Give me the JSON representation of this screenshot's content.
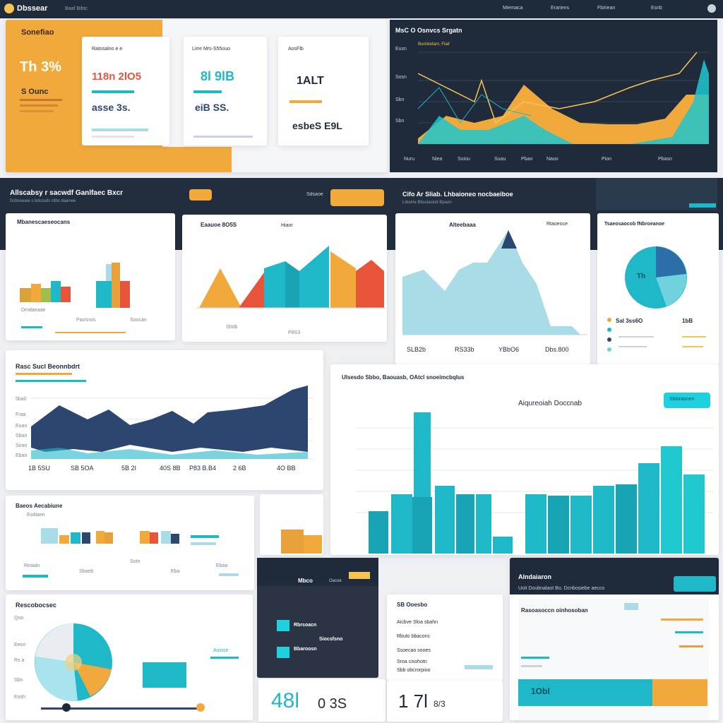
{
  "topbar": {
    "logo": "Dbssear",
    "nav": [
      "Baaf Bibtc"
    ],
    "right_items": [
      "Miemaca",
      "Erariens",
      "Fbiriean",
      "Esnb"
    ]
  },
  "hero": {
    "title": "Sonefiao",
    "big_value": "Th 3%",
    "sub_value": "S Ounc",
    "cards": [
      {
        "label": "Ratosalno e e",
        "row1": "118n 2lO5",
        "row2": "asse 3s."
      },
      {
        "label": "Lirre Mrs-S55ouo",
        "row1": "8l 9lB",
        "row2": "eiB SS."
      },
      {
        "label": "AosFlb",
        "row1": "1ALT",
        "row2": "esbeS E9L"
      }
    ]
  },
  "top_chart": {
    "title": "MsC O Osnvcs Srgatn",
    "legend": "Buriniiotam, Fiiaf",
    "y_ticks": [
      "Eusn",
      "Sosn",
      "Sbn",
      "Sbn"
    ],
    "x_ticks": [
      "Nuru",
      "Niea",
      "Suiou",
      "Suau",
      "Pbao",
      "Naoo",
      "Pion",
      "Pbasn"
    ]
  },
  "section2": {
    "title": "Allscabsy r sacwdf Ganlfaec Bxcr",
    "subtitle": "Dcbooeaie s bdcosds rdbc daanwe",
    "button": "Sdsaoe",
    "right_title": "Cifo Ar Sliab. Lhbaioneo nocbaeiboe",
    "right_sub": "Lduvrie Blioutasiod Bpaon"
  },
  "bar_card1": {
    "title": "Mbanescaeseocans",
    "legend": [
      "Dmdaeaae",
      "Paosnos",
      "Soocan"
    ]
  },
  "mountain_card": {
    "title": "Eaauoe 8O5S",
    "sub": "Hiaor",
    "x_ticks": [
      "Sfotb",
      "P8S3"
    ]
  },
  "area_card": {
    "title": "Alteebaaa",
    "sub": "Rtaoeoce",
    "values": [
      "SLB2b",
      "RS33b",
      "YBbO6",
      "Dbs.800"
    ]
  },
  "pie_card1": {
    "title": "Tsaeosaocob fNbroeanoe",
    "center": "Th",
    "rows": [
      {
        "label": "Sal 3ss6O",
        "value": "1bB"
      }
    ]
  },
  "mid_left_chart": {
    "title": "Rasc Sucl Beonnbdrt",
    "y_ticks": [
      "5ba0",
      "Fraa",
      "Euan",
      "Sban",
      "Siran",
      "Eban",
      "Sban"
    ],
    "x_ticks": [
      "1B 5SU",
      "SB 5OA",
      "5B 2I",
      "40S 8B",
      "P83 B.B4",
      "2 6B",
      "4O BB"
    ]
  },
  "big_bar_chart": {
    "title": "Ulsesdo Sbbo, Baouasb, OAtcl snoeimcbqlus",
    "subtitle": "Aiqureoiah Doccnab",
    "button": "Sbbirasnen"
  },
  "small_bar_card": {
    "title": "Baeos Aecabiune",
    "sub": "Eodiaen",
    "x_ticks": [
      "Reaain",
      "Sbaeb",
      "Soto",
      "Eba",
      "Ebaa"
    ]
  },
  "donut_card": {
    "title": "Rescobocsec",
    "y_ticks": [
      "Qoo",
      "Eeon",
      "Rs a",
      "Sbn",
      "Eosh"
    ],
    "badge": "Auiose"
  },
  "dark_card": {
    "tab1": "Mbco",
    "tab2": "Oacoe",
    "label1": "Rbrsoacn",
    "label2": "Bbaroosn",
    "stat": "Siocsfsno"
  },
  "list_card": {
    "title": "SB Ooesbo",
    "rows": [
      "Aicbve Sloa sbahn",
      "Rbuto bbaconc",
      "Ssoecao sooes",
      "Sroa cisohotn",
      "Sbb obcrorpioo"
    ]
  },
  "bottom_stats": {
    "stat1": "48l",
    "stat2": "0 3S",
    "stat3": "1 7l",
    "stat3_sub": "8/3"
  },
  "right_bottom_card": {
    "title": "Alndaiaron",
    "sub": "Uoit Doubnalaot Bo. Dcnbosiebe aecco",
    "chart_title": "Rasoasoccn oinhosoban",
    "value": "1Obl"
  },
  "colors": {
    "dark": "#1f2a3a",
    "orange": "#f2a93b",
    "teal": "#1fb8c9",
    "navy": "#2c4670",
    "red": "#e86a4a",
    "lightblue": "#a9dce6"
  }
}
